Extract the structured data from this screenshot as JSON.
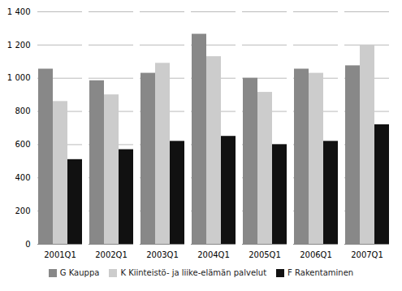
{
  "chart_data": {
    "type": "bar",
    "categories": [
      "2001Q1",
      "2002Q1",
      "2003Q1",
      "2004Q1",
      "2005Q1",
      "2006Q1",
      "2007Q1"
    ],
    "series": [
      {
        "name": "G Kauppa",
        "color": "#888888",
        "values": [
          1055,
          985,
          1030,
          1265,
          1000,
          1055,
          1075
        ]
      },
      {
        "name": "K Kiinteistö- ja liike-elämän palvelut",
        "color": "#cccccc",
        "values": [
          860,
          900,
          1090,
          1130,
          915,
          1030,
          1200
        ]
      },
      {
        "name": "F Rakentaminen",
        "color": "#111111",
        "values": [
          510,
          570,
          620,
          650,
          600,
          620,
          720
        ]
      }
    ],
    "ylim": [
      0,
      1400
    ],
    "yticks": [
      0,
      200,
      400,
      600,
      800,
      {
        "value": 1000,
        "label": "1 000"
      },
      {
        "value": 1200,
        "label": "1 200"
      },
      {
        "value": 1400,
        "label": "1 400"
      }
    ],
    "grid": true,
    "legend": "bottom"
  }
}
